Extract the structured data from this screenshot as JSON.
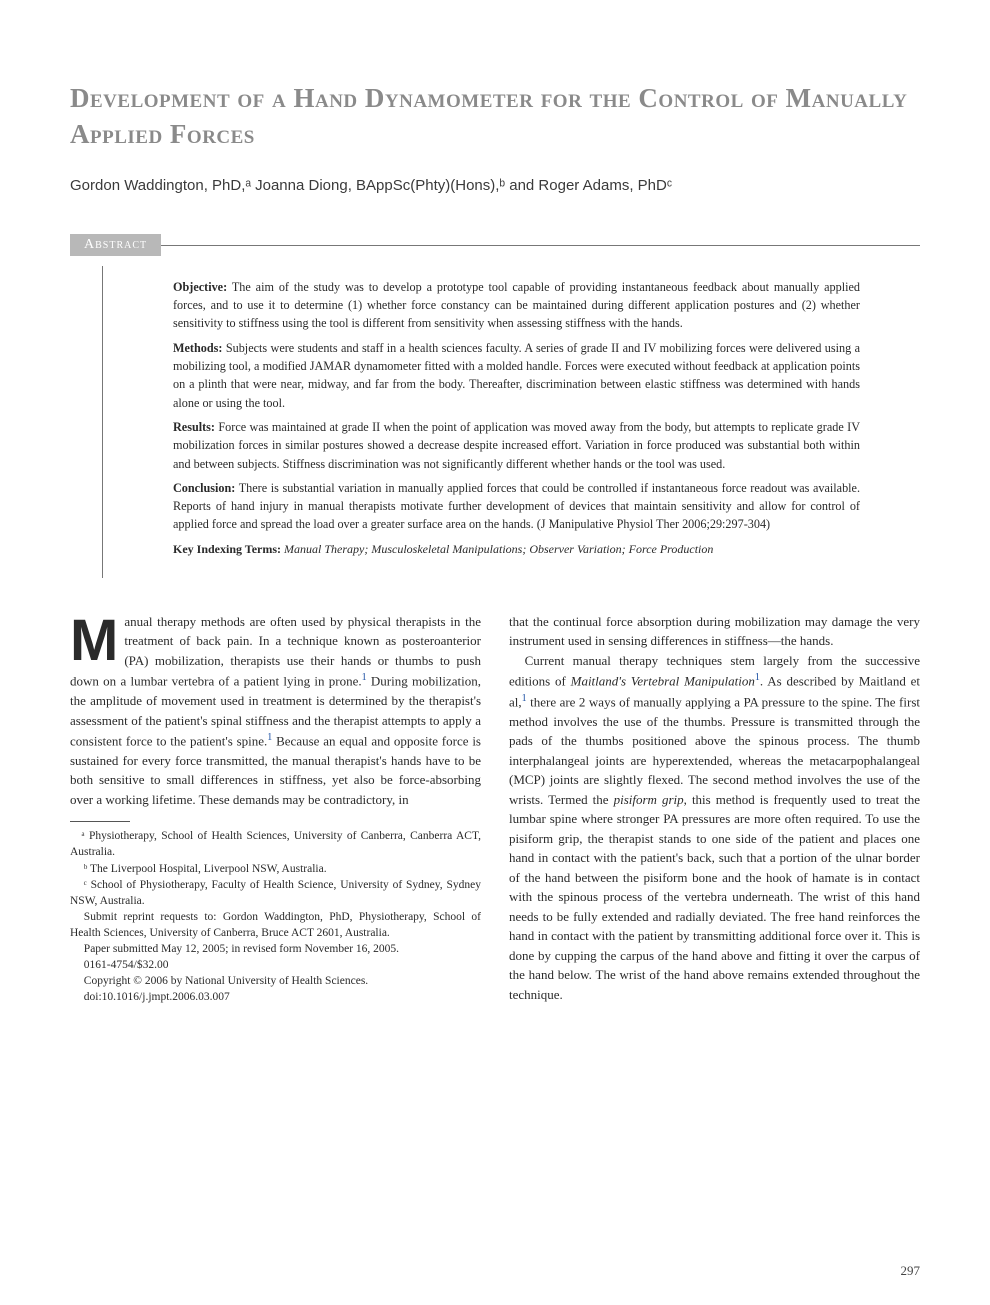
{
  "title": "Development of a Hand Dynamometer for the Control of Manually Applied Forces",
  "authors_html": "Gordon Waddington, PhD,ᵃ Joanna Diong, BAppSc(Phty)(Hons),ᵇ and Roger Adams, PhDᶜ",
  "abstract": {
    "label": "Abstract",
    "sections": [
      {
        "label": "Objective:",
        "text": "The aim of the study was to develop a prototype tool capable of providing instantaneous feedback about manually applied forces, and to use it to determine (1) whether force constancy can be maintained during different application postures and (2) whether sensitivity to stiffness using the tool is different from sensitivity when assessing stiffness with the hands."
      },
      {
        "label": "Methods:",
        "text": "Subjects were students and staff in a health sciences faculty. A series of grade II and IV mobilizing forces were delivered using a mobilizing tool, a modified JAMAR dynamometer fitted with a molded handle. Forces were executed without feedback at application points on a plinth that were near, midway, and far from the body. Thereafter, discrimination between elastic stiffness was determined with hands alone or using the tool."
      },
      {
        "label": "Results:",
        "text": "Force was maintained at grade II when the point of application was moved away from the body, but attempts to replicate grade IV mobilization forces in similar postures showed a decrease despite increased effort. Variation in force produced was substantial both within and between subjects. Stiffness discrimination was not significantly different whether hands or the tool was used."
      },
      {
        "label": "Conclusion:",
        "text": "There is substantial variation in manually applied forces that could be controlled if instantaneous force readout was available. Reports of hand injury in manual therapists motivate further development of devices that maintain sensitivity and allow for control of applied force and spread the load over a greater surface area on the hands. (J Manipulative Physiol Ther 2006;29:297-304)"
      }
    ],
    "keywords_label": "Key Indexing Terms:",
    "keywords": "Manual Therapy; Musculoskeletal Manipulations; Observer Variation; Force Production"
  },
  "body": {
    "left_para_dropcap": "M",
    "left_para_rest": "anual therapy methods are often used by physical therapists in the treatment of back pain. In a technique known as posteroanterior (PA) mobilization, therapists use their hands or thumbs to push down on a lumbar vertebra of a patient lying in prone.",
    "left_para_cont": " During mobilization, the amplitude of movement used in treatment is determined by the therapist's assessment of the patient's spinal stiffness and the therapist attempts to apply a consistent force to the patient's spine.",
    "left_para_cont2": " Because an equal and opposite force is sustained for every force transmitted, the manual therapist's hands have to be both sensitive to small differences in stiffness, yet also be force-absorbing over a working lifetime. These demands may be contradictory, in",
    "right_para_1": "that the continual force absorption during mobilization may damage the very instrument used in sensing differences in stiffness—the hands.",
    "right_para_2a": "Current manual therapy techniques stem largely from the successive editions of ",
    "right_para_2_ital": "Maitland's Vertebral Manipulation",
    "right_para_2b": ". As described by Maitland et al,",
    "right_para_2c": " there are 2 ways of manually applying a PA pressure to the spine. The first method involves the use of the thumbs. Pressure is transmitted through the pads of the thumbs positioned above the spinous process. The thumb interphalangeal joints are hyperextended, whereas the metacarpophalangeal (MCP) joints are slightly flexed. The second method involves the use of the wrists. Termed the ",
    "right_para_2_ital2": "pisiform grip",
    "right_para_2d": ", this method is frequently used to treat the lumbar spine where stronger PA pressures are more often required. To use the pisiform grip, the therapist stands to one side of the patient and places one hand in contact with the patient's back, such that a portion of the ulnar border of the hand between the pisiform bone and the hook of hamate is in contact with the spinous process of the vertebra underneath. The wrist of this hand needs to be fully extended and radially deviated. The free hand reinforces the hand in contact with the patient by transmitting additional force over it. This is done by cupping the carpus of the hand above and fitting it over the carpus of the hand below. The wrist of the hand above remains extended throughout the technique."
  },
  "footnotes": [
    "ᵃ Physiotherapy, School of Health Sciences, University of Canberra, Canberra ACT, Australia.",
    "ᵇ The Liverpool Hospital, Liverpool NSW, Australia.",
    "ᶜ School of Physiotherapy, Faculty of Health Science, University of Sydney, Sydney NSW, Australia.",
    "Submit reprint requests to: Gordon Waddington, PhD, Physiotherapy, School of Health Sciences, University of Canberra, Bruce ACT 2601, Australia.",
    "Paper submitted May 12, 2005; in revised form November 16, 2005.",
    "0161-4754/$32.00",
    "Copyright © 2006 by National University of Health Sciences.",
    "doi:10.1016/j.jmpt.2006.03.007"
  ],
  "ref_mark": "1",
  "page_number": "297",
  "colors": {
    "title_gray": "#8a8a8a",
    "label_bg": "#b8b8b8",
    "rule": "#777777",
    "link_blue": "#1a4fa3",
    "text": "#2a2a2a"
  }
}
